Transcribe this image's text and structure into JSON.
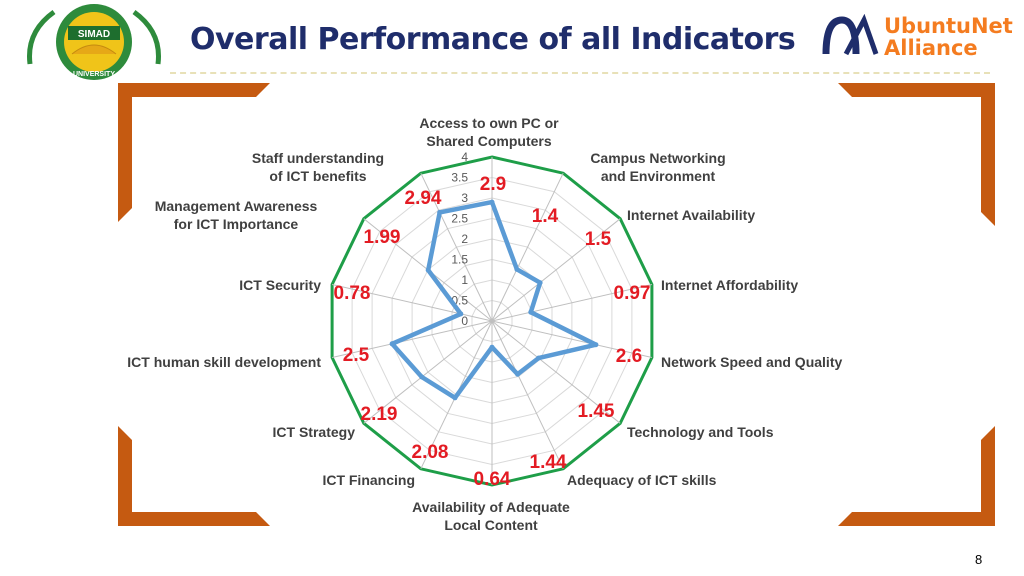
{
  "slide": {
    "title": "Overall Performance of all Indicators",
    "page_number": "8",
    "logo_left": {
      "text": "SIMAD",
      "subtext": "UNIVERSITY"
    },
    "logo_right": {
      "line1": "UbuntuNet",
      "line2": "Alliance"
    }
  },
  "colors": {
    "title": "#1f2d6b",
    "bracket": "#c55a11",
    "outer_ring": "#1e9e48",
    "series": "#5b9bd5",
    "value_label": "#e31b23",
    "brand_orange": "#f47c20",
    "brand_navy": "#1f2d6b"
  },
  "chart_data": {
    "type": "radar",
    "title": "",
    "categories": [
      "Access to own PC or Shared Computers",
      "Campus Networking and Environment",
      "Internet Availability",
      "Internet Affordability",
      "Network Speed and Quality",
      "Technology and Tools",
      "Adequacy of ICT skills",
      "Availability of Adequate Local Content",
      "ICT Financing",
      "ICT Strategy",
      "ICT human skill development",
      "ICT Security",
      "Management Awareness for ICT Importance",
      "Staff understanding of ICT benefits"
    ],
    "series": [
      {
        "values": [
          2.9,
          1.4,
          1.5,
          0.97,
          2.6,
          1.45,
          1.44,
          0.64,
          2.08,
          2.19,
          2.5,
          0.78,
          1.99,
          2.94
        ]
      }
    ],
    "data_labels": [
      "2.9",
      "1.4",
      "1.5",
      "0.97",
      "2.6",
      "1.45",
      "1.44",
      "0.64",
      "2.08",
      "2.19",
      "2.5",
      "0.78",
      "1.99",
      "2.94"
    ],
    "r_ticks": [
      "0",
      "0.5",
      "1",
      "1.5",
      "2",
      "2.5",
      "3",
      "3.5",
      "4"
    ],
    "r_range": [
      0,
      4
    ],
    "grid": true,
    "legend": false
  }
}
